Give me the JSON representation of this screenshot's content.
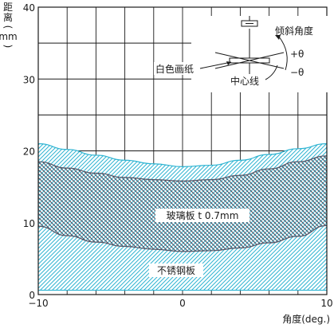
{
  "chart_data": {
    "type": "area",
    "ylabel": "距离(mm)",
    "ylabel_lines": [
      "距",
      "离",
      "(",
      "mm",
      ")"
    ],
    "xlabel": "角度(deg.)",
    "xlim": [
      -10,
      10
    ],
    "ylim": [
      0,
      40
    ],
    "x_ticks": [
      -10,
      0,
      10
    ],
    "x_tick_labels": [
      "−10",
      "0",
      "10"
    ],
    "y_ticks": [
      0,
      10,
      20,
      30,
      40
    ],
    "x_grid_step": 2,
    "y_grid_step": 5,
    "grid": true,
    "x": [
      -10,
      -8,
      -6,
      -4,
      -2,
      0,
      2,
      4,
      6,
      8,
      10
    ],
    "series": [
      {
        "name": "不锈钢板",
        "upper": [
          21.0,
          20.2,
          19.4,
          18.7,
          18.2,
          17.8,
          18.0,
          18.7,
          19.5,
          20.3,
          21.0
        ],
        "lower": [
          0.6,
          0.6,
          0.6,
          0.6,
          0.6,
          0.6,
          0.6,
          0.6,
          0.6,
          0.6,
          0.6
        ],
        "hatch": "single-diagonal",
        "color": "#2fb4d2"
      },
      {
        "name": "玻璃板 t 0.7mm",
        "upper": [
          18.5,
          17.6,
          16.9,
          16.3,
          16.0,
          15.8,
          16.0,
          16.6,
          17.5,
          18.5,
          19.3
        ],
        "lower": [
          9.5,
          8.2,
          7.3,
          6.7,
          6.3,
          6.0,
          6.1,
          6.5,
          7.2,
          8.1,
          9.6
        ],
        "hatch": "cross",
        "color": "#555566"
      }
    ],
    "diagram": {
      "labels": [
        "倾斜角度",
        "+θ",
        "−θ",
        "白色画纸",
        "中心线"
      ]
    }
  }
}
